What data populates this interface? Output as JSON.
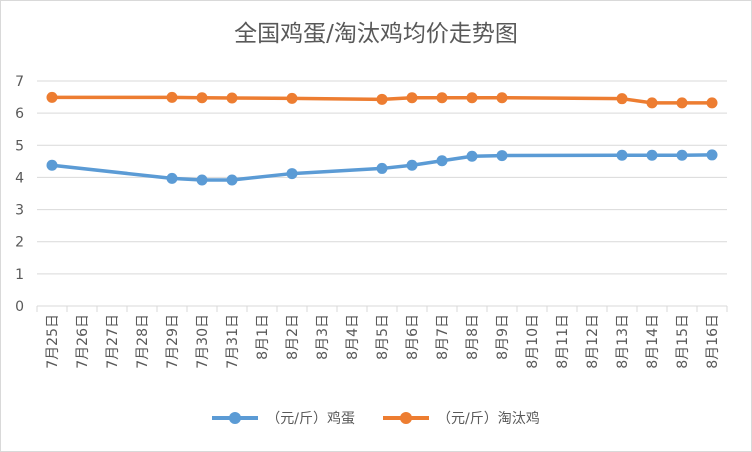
{
  "colors": {
    "egg": "#5B9BD5",
    "hen": "#ED7D31",
    "grid": "#d9d9d9",
    "text": "#595959"
  },
  "chart_data": {
    "type": "line",
    "title": "全国鸡蛋/淘汰鸡均价走势图",
    "xlabel": "",
    "ylabel": "",
    "ylim": [
      0,
      7
    ],
    "yticks": [
      0,
      1,
      2,
      3,
      4,
      5,
      6,
      7
    ],
    "grid": true,
    "legend_position": "bottom",
    "categories": [
      "7月25日",
      "7月26日",
      "7月27日",
      "7月28日",
      "7月29日",
      "7月30日",
      "7月31日",
      "8月1日",
      "8月2日",
      "8月3日",
      "8月4日",
      "8月5日",
      "8月6日",
      "8月7日",
      "8月8日",
      "8月9日",
      "8月10日",
      "8月11日",
      "8月12日",
      "8月13日",
      "8月14日",
      "8月15日",
      "8月16日"
    ],
    "series": [
      {
        "name": "（元/斤）鸡蛋",
        "values": [
          4.38,
          null,
          null,
          null,
          3.97,
          3.92,
          3.92,
          null,
          4.12,
          null,
          null,
          4.28,
          4.38,
          4.52,
          4.66,
          4.68,
          null,
          null,
          null,
          4.69,
          4.69,
          4.69,
          4.7
        ]
      },
      {
        "name": "（元/斤）淘汰鸡",
        "values": [
          6.49,
          null,
          null,
          null,
          6.49,
          6.48,
          6.47,
          null,
          6.46,
          null,
          null,
          6.43,
          6.48,
          6.48,
          6.48,
          6.48,
          null,
          null,
          null,
          6.45,
          6.32,
          6.32,
          6.32
        ]
      }
    ]
  }
}
